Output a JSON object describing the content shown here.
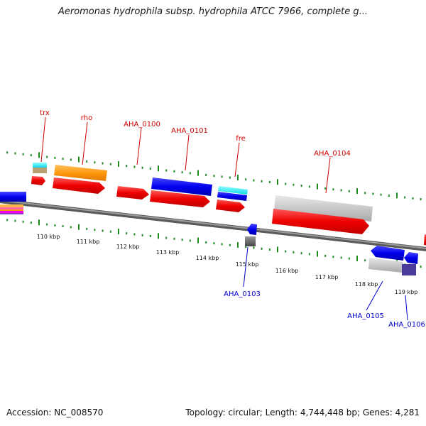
{
  "title": "Aeromonas hydrophila subsp. hydrophila ATCC 7966, complete g...",
  "footer": {
    "accession": "Accession: NC_008570",
    "summary": "Topology: circular; Length: 4,744,448 bp; Genes: 4,281"
  },
  "colors": {
    "forward_label": "#cc0000",
    "reverse_label": "#0000cc",
    "tick": "#1f8a1f",
    "backbone": "#808080"
  },
  "ticks": [
    "110 kbp",
    "111 kbp",
    "112 kbp",
    "113 kbp",
    "114 kbp",
    "115 kbp",
    "116 kbp",
    "117 kbp",
    "118 kbp",
    "119 kbp"
  ],
  "gene_labels": {
    "top": [
      "trx",
      "rho",
      "AHA_0100",
      "AHA_0101",
      "fre",
      "AHA_0104"
    ],
    "bottom": [
      "AHA_0103",
      "AHA_0105",
      "AHA_0106"
    ]
  }
}
